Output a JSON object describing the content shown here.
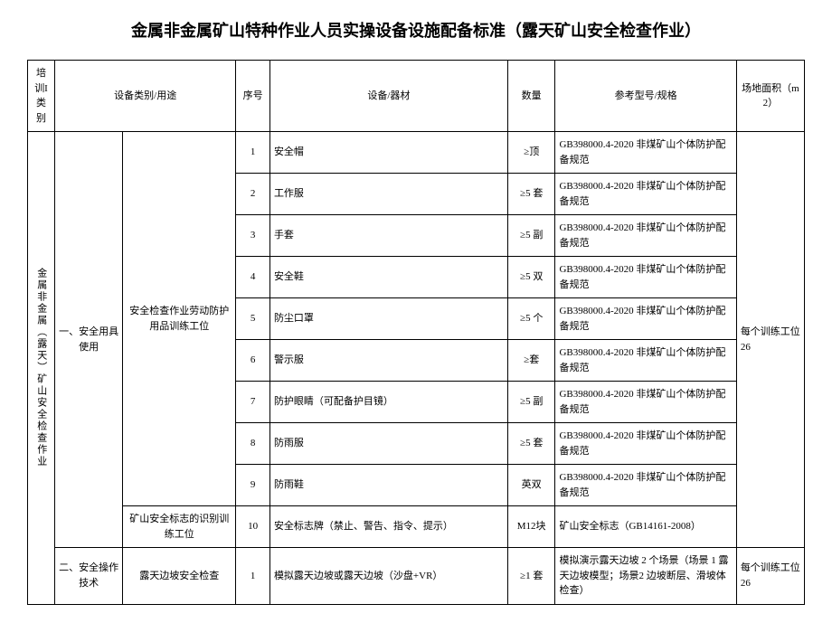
{
  "title": "金属非金属矿山特种作业人员实操设备设施配备标准（露天矿山安全检查作业）",
  "headers": {
    "col1": "培训I类别",
    "col2": "设备类别/用途",
    "col3": "序号",
    "col4": "设备/器材",
    "col5": "数量",
    "col6": "参考型号/规格",
    "col7": "场地面积（m2）"
  },
  "category_main": "金属非金属（露天）矿山安全检查作业",
  "group1": {
    "label": "一、安全用具使用",
    "sub1": "安全检查作业劳动防护用品训练工位",
    "sub2": "矿山安全标志的识别训练工位"
  },
  "group2": {
    "label": "二、安全操作技术",
    "sub1": "露天边坡安全检查"
  },
  "area1": "每个训练工位 26",
  "area2": "每个训练工位 26",
  "rows": [
    {
      "no": "1",
      "name": "安全帽",
      "qty": "≥顶",
      "spec": "GB398000.4-2020 非煤矿山个体防护配备规范"
    },
    {
      "no": "2",
      "name": "工作服",
      "qty": "≥5 套",
      "spec": "GB398000.4-2020 非煤矿山个体防护配备规范"
    },
    {
      "no": "3",
      "name": "手套",
      "qty": "≥5 副",
      "spec": "GB398000.4-2020 非煤矿山个体防护配备规范"
    },
    {
      "no": "4",
      "name": "安全鞋",
      "qty": "≥5 双",
      "spec": "GB398000.4-2020 非煤矿山个体防护配备规范"
    },
    {
      "no": "5",
      "name": "防尘口罩",
      "qty": "≥5 个",
      "spec": "GB398000.4-2020 非煤矿山个体防护配备规范"
    },
    {
      "no": "6",
      "name": "警示服",
      "qty": "≥套",
      "spec": "GB398000.4-2020 非煤矿山个体防护配备规范"
    },
    {
      "no": "7",
      "name": "防护眼睛（可配备护目镜）",
      "qty": "≥5 副",
      "spec": "GB398000.4-2020 非煤矿山个体防护配备规范"
    },
    {
      "no": "8",
      "name": "防雨服",
      "qty": "≥5 套",
      "spec": "GB398000.4-2020 非煤矿山个体防护配备规范"
    },
    {
      "no": "9",
      "name": "防雨鞋",
      "qty": "英双",
      "spec": "GB398000.4-2020 非煤矿山个体防护配备规范"
    },
    {
      "no": "10",
      "name": "安全标志牌（禁止、警告、指令、提示）",
      "qty": "M12块",
      "spec": "矿山安全标志（GB14161-2008）"
    },
    {
      "no": "1",
      "name": "模拟露天边坡或露天边坡（沙盘+VR）",
      "qty": "≥1 套",
      "spec": "模拟演示露天边坡 2 个场景（场景 1 露天边坡模型；场景2 边坡断层、滑坡体检查）"
    }
  ]
}
